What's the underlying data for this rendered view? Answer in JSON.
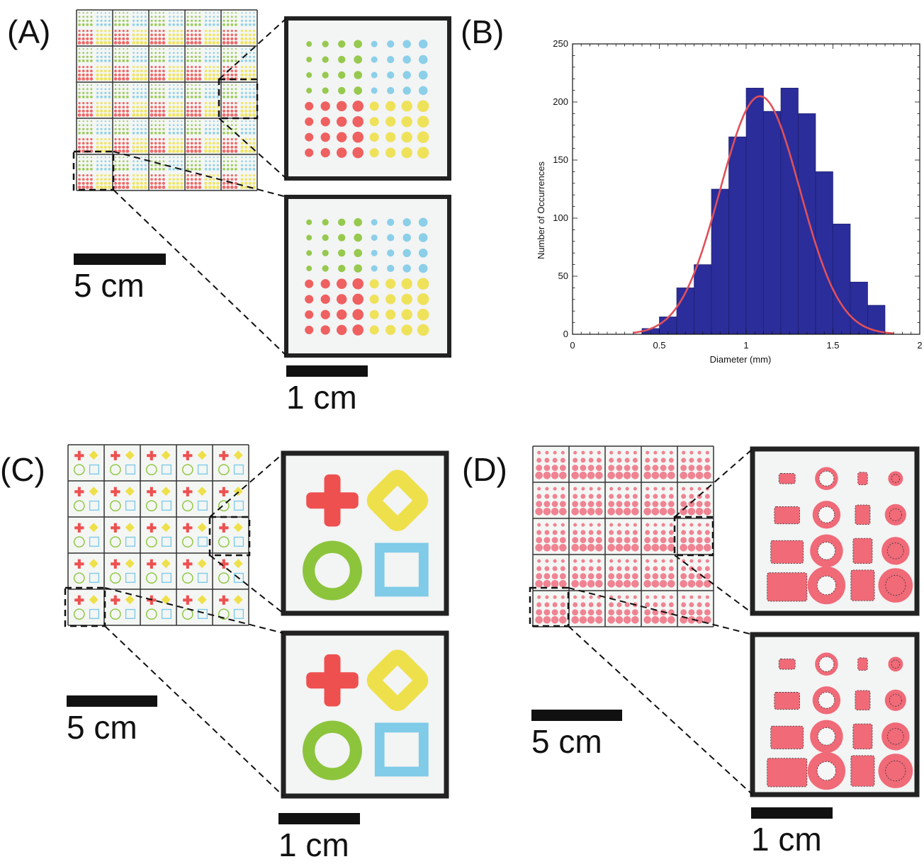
{
  "panels": {
    "a": {
      "label": "(A)",
      "scale_big": "5 cm",
      "scale_small": "1 cm"
    },
    "b": {
      "label": "(B)"
    },
    "c": {
      "label": "(C)",
      "scale_big": "5 cm",
      "scale_small": "1 cm"
    },
    "d": {
      "label": "(D)",
      "scale_big": "5 cm",
      "scale_small": "1 cm"
    }
  },
  "colors": {
    "green": "#8cc43c",
    "blue": "#7fcbe8",
    "red": "#ee5050",
    "yellow": "#eee04a",
    "bar": "#2b2d9b",
    "curve": "#e0505a",
    "grid": "#111111"
  },
  "chart_data": {
    "type": "bar",
    "xlabel": "Diameter (mm)",
    "ylabel": "Number of Occurrences",
    "xlim": [
      0,
      2
    ],
    "ylim": [
      0,
      250
    ],
    "xticks": [
      "0",
      "0.5",
      "1",
      "1.5",
      "2"
    ],
    "yticks": [
      "0",
      "50",
      "100",
      "150",
      "200",
      "250"
    ],
    "bin_width": 0.1,
    "bin_starts": [
      0.4,
      0.5,
      0.6,
      0.7,
      0.8,
      0.9,
      1.0,
      1.1,
      1.2,
      1.3,
      1.4,
      1.5,
      1.6,
      1.7
    ],
    "values": [
      5,
      15,
      40,
      60,
      125,
      170,
      212,
      192,
      212,
      190,
      140,
      95,
      45,
      25
    ],
    "fit_curve": {
      "type": "gaussian",
      "mean": 1.08,
      "std": 0.23,
      "peak": 205
    }
  }
}
